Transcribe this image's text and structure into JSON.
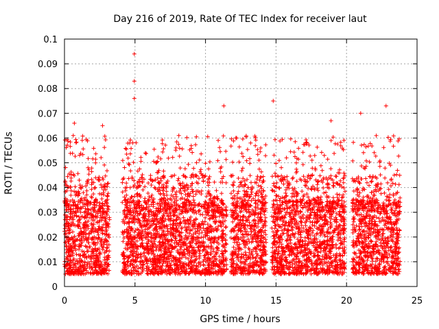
{
  "chart_data": {
    "type": "scatter",
    "title": "Day 216 of 2019, Rate Of TEC Index for receiver laut",
    "xlabel": "GPS time / hours",
    "ylabel": "ROTI / TECUs",
    "xlim": [
      0,
      25
    ],
    "ylim": [
      0,
      0.1
    ],
    "xticks": [
      0,
      5,
      10,
      15,
      20,
      25
    ],
    "xtick_labels": [
      "0",
      "5",
      "10",
      "15",
      "20",
      "25"
    ],
    "yticks": [
      0,
      0.01,
      0.02,
      0.03,
      0.04,
      0.05,
      0.06,
      0.07,
      0.08,
      0.09,
      0.1
    ],
    "ytick_labels": [
      "0",
      "0.01",
      "0.02",
      "0.03",
      "0.04",
      "0.05",
      "0.06",
      "0.07",
      "0.08",
      "0.09",
      "0.1"
    ],
    "grid": true,
    "marker": "+",
    "color": "#ff0000",
    "data_segments_hours": [
      [
        0,
        3.2
      ],
      [
        4.1,
        11.5
      ],
      [
        11.8,
        14.3
      ],
      [
        14.7,
        19.9
      ],
      [
        20.4,
        23.8
      ]
    ],
    "typical_roti_range": [
      0.005,
      0.035
    ],
    "notable_points": [
      {
        "x": 4.95,
        "y": 0.094
      },
      {
        "x": 4.95,
        "y": 0.083
      },
      {
        "x": 4.95,
        "y": 0.076
      },
      {
        "x": 11.3,
        "y": 0.073
      },
      {
        "x": 14.8,
        "y": 0.075
      },
      {
        "x": 22.8,
        "y": 0.073
      },
      {
        "x": 21.0,
        "y": 0.07
      },
      {
        "x": 18.9,
        "y": 0.067
      },
      {
        "x": 0.7,
        "y": 0.066
      },
      {
        "x": 2.7,
        "y": 0.065
      }
    ]
  }
}
